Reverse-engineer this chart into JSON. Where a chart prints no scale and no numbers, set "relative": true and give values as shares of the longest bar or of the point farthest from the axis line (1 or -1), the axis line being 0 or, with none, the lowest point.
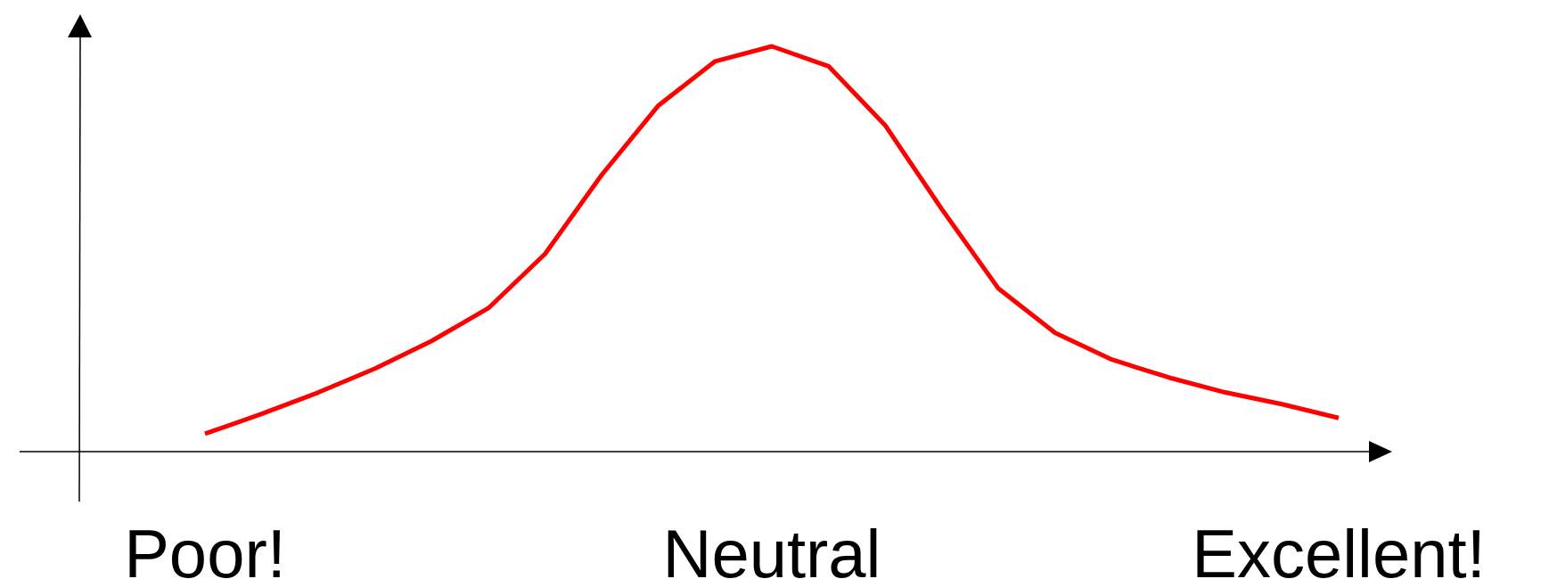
{
  "chart_data": {
    "type": "line",
    "relative": true,
    "categories": [
      "Poor!",
      null,
      null,
      null,
      null,
      null,
      null,
      null,
      null,
      null,
      "Neutral",
      null,
      null,
      null,
      null,
      null,
      null,
      null,
      null,
      null,
      "Excellent!"
    ],
    "series": [
      {
        "color": "#ff0000",
        "values": [
          0.044,
          0.093,
          0.146,
          0.205,
          0.273,
          0.354,
          0.488,
          0.683,
          0.854,
          0.963,
          1.0,
          0.951,
          0.805,
          0.598,
          0.402,
          0.293,
          0.227,
          0.183,
          0.146,
          0.117,
          0.083
        ]
      }
    ]
  }
}
